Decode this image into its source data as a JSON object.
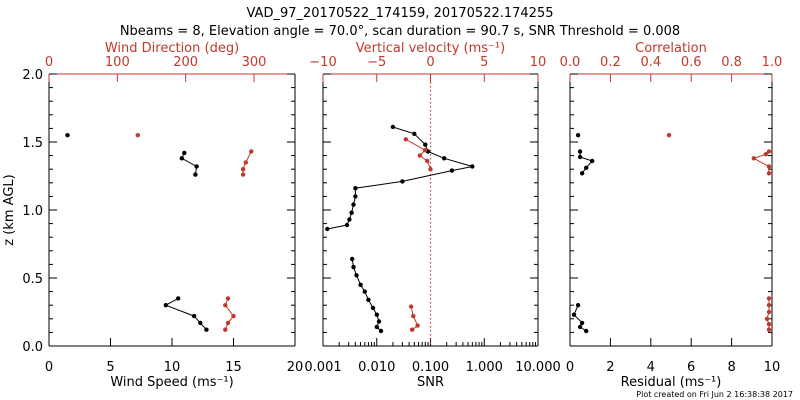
{
  "header": {
    "title": "VAD_97_20170522_174159, 20170522.174255",
    "subtitle": "Nbeams = 8, Elevation angle = 70.0°, scan duration = 90.7 s, SNR Threshold = 0.008"
  },
  "footer": {
    "text": "Plot created on Fri Jun  2 16:38:38 2017"
  },
  "colors": {
    "black": "#000000",
    "red": "#c0392b"
  },
  "chart_data": [
    {
      "type": "line",
      "panel": "wind",
      "ylabel": "z (km AGL)",
      "ylim": [
        0.0,
        2.0
      ],
      "yticks": [
        "0.0",
        "0.5",
        "1.0",
        "1.5",
        "2.0"
      ],
      "bottom_axis": {
        "label": "Wind Speed (ms⁻¹)",
        "range": [
          0,
          20
        ],
        "ticks": [
          "0",
          "5",
          "10",
          "15",
          "20"
        ],
        "color": "#000000"
      },
      "top_axis": {
        "label": "Wind Direction (deg)",
        "range": [
          0,
          360
        ],
        "ticks": [
          "0",
          "100",
          "200",
          "300"
        ],
        "color": "#c0392b"
      },
      "series": [
        {
          "axis": "bottom",
          "color": "#000000",
          "segments": [
            [
              [
                1.5,
                1.55
              ]
            ],
            [
              [
                11.0,
                1.42
              ],
              [
                10.8,
                1.38
              ],
              [
                12.0,
                1.32
              ],
              [
                11.9,
                1.26
              ]
            ],
            [
              [
                10.5,
                0.35
              ],
              [
                9.5,
                0.3
              ],
              [
                11.8,
                0.22
              ],
              [
                12.3,
                0.17
              ],
              [
                12.8,
                0.12
              ]
            ]
          ]
        },
        {
          "axis": "top",
          "color": "#c0392b",
          "segments": [
            [
              [
                130,
                1.55
              ]
            ],
            [
              [
                296,
                1.43
              ],
              [
                288,
                1.35
              ],
              [
                284,
                1.3
              ],
              [
                284,
                1.26
              ]
            ],
            [
              [
                262,
                0.35
              ],
              [
                258,
                0.3
              ],
              [
                270,
                0.22
              ],
              [
                262,
                0.17
              ],
              [
                258,
                0.12
              ]
            ]
          ]
        }
      ]
    },
    {
      "type": "line",
      "panel": "velocity",
      "ylim": [
        0.0,
        2.0
      ],
      "bottom_axis": {
        "label": "SNR",
        "scale": "log",
        "range": [
          0.001,
          10.0
        ],
        "ticks": [
          "0.001",
          "0.010",
          "0.100",
          "1.000",
          "10.000"
        ],
        "color": "#000000"
      },
      "top_axis": {
        "label": "Vertical velocity (ms⁻¹)",
        "range": [
          -10,
          10
        ],
        "ticks": [
          "−10",
          "−5",
          "0",
          "5",
          "10"
        ],
        "color": "#c0392b"
      },
      "reference_line": {
        "axis": "top",
        "value": 0,
        "style": "dotted",
        "color": "#c0392b"
      },
      "series": [
        {
          "axis": "bottom",
          "color": "#000000",
          "segments": [
            [
              [
                0.02,
                1.61
              ],
              [
                0.05,
                1.56
              ],
              [
                0.08,
                1.48
              ],
              [
                0.09,
                1.43
              ],
              [
                0.18,
                1.38
              ],
              [
                0.6,
                1.32
              ],
              [
                0.25,
                1.29
              ],
              [
                0.03,
                1.21
              ],
              [
                0.004,
                1.16
              ],
              [
                0.004,
                1.1
              ],
              [
                0.0037,
                1.04
              ],
              [
                0.0034,
                0.98
              ],
              [
                0.0031,
                0.93
              ],
              [
                0.0028,
                0.89
              ],
              [
                0.0012,
                0.86
              ]
            ],
            [
              [
                0.0035,
                0.64
              ],
              [
                0.0037,
                0.58
              ],
              [
                0.0042,
                0.52
              ],
              [
                0.005,
                0.45
              ],
              [
                0.006,
                0.4
              ],
              [
                0.007,
                0.34
              ],
              [
                0.0085,
                0.28
              ],
              [
                0.01,
                0.23
              ],
              [
                0.011,
                0.18
              ],
              [
                0.01,
                0.14
              ],
              [
                0.012,
                0.11
              ]
            ]
          ]
        },
        {
          "axis": "top",
          "color": "#c0392b",
          "segments": [
            [
              [
                -2.3,
                1.52
              ],
              [
                -0.5,
                1.44
              ],
              [
                -1.0,
                1.4
              ],
              [
                -0.3,
                1.36
              ],
              [
                0.0,
                1.3
              ]
            ],
            [
              [
                -1.8,
                0.29
              ],
              [
                -1.6,
                0.22
              ],
              [
                -1.2,
                0.15
              ],
              [
                -1.7,
                0.12
              ]
            ]
          ]
        }
      ]
    },
    {
      "type": "line",
      "panel": "correlation",
      "ylim": [
        0.0,
        2.0
      ],
      "bottom_axis": {
        "label": "Residual (ms⁻¹)",
        "range": [
          0,
          10
        ],
        "ticks": [
          "0",
          "2",
          "4",
          "6",
          "8",
          "10"
        ],
        "color": "#000000"
      },
      "top_axis": {
        "label": "Correlation",
        "range": [
          0.0,
          1.0
        ],
        "ticks": [
          "0.0",
          "0.2",
          "0.4",
          "0.6",
          "0.8",
          "1.0"
        ],
        "color": "#c0392b"
      },
      "series": [
        {
          "axis": "bottom",
          "color": "#000000",
          "segments": [
            [
              [
                0.4,
                1.55
              ]
            ],
            [
              [
                0.5,
                1.43
              ],
              [
                0.5,
                1.39
              ],
              [
                1.1,
                1.36
              ],
              [
                0.8,
                1.31
              ],
              [
                0.6,
                1.27
              ]
            ],
            [
              [
                0.4,
                0.3
              ],
              [
                0.2,
                0.23
              ],
              [
                0.6,
                0.17
              ],
              [
                0.5,
                0.14
              ],
              [
                0.8,
                0.11
              ]
            ]
          ]
        },
        {
          "axis": "top",
          "color": "#c0392b",
          "segments": [
            [
              [
                0.49,
                1.55
              ]
            ],
            [
              [
                0.985,
                1.43
              ],
              [
                0.97,
                1.41
              ],
              [
                0.91,
                1.38
              ],
              [
                0.985,
                1.32
              ],
              [
                0.985,
                1.27
              ]
            ],
            [
              [
                0.985,
                0.35
              ],
              [
                0.985,
                0.3
              ],
              [
                0.985,
                0.25
              ],
              [
                0.975,
                0.2
              ],
              [
                0.985,
                0.16
              ],
              [
                0.985,
                0.12
              ]
            ]
          ]
        }
      ]
    }
  ]
}
